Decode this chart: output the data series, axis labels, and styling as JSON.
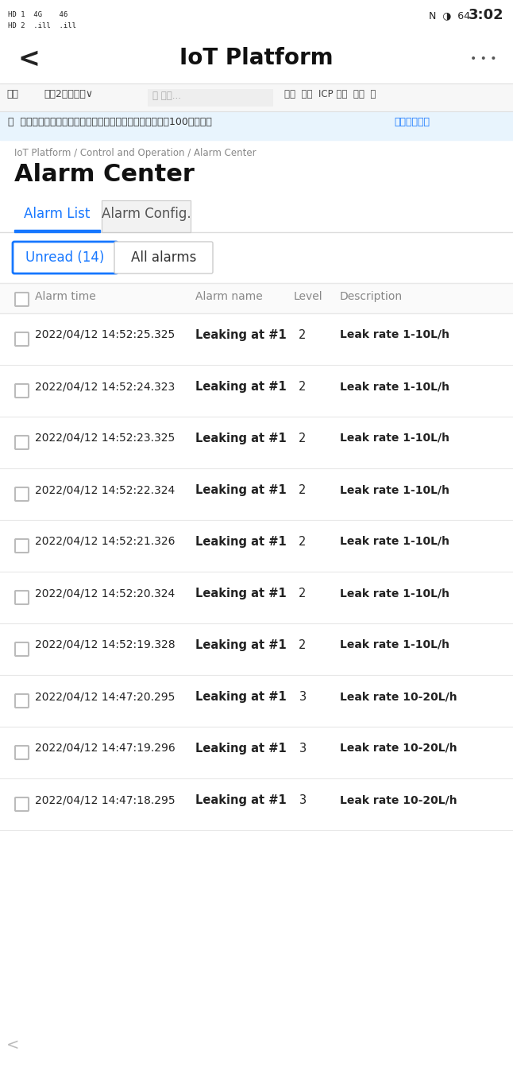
{
  "bg_color": "#ffffff",
  "status_bar_bg": "#ffffff",
  "status_bar_text_color": "#222222",
  "nav_title": "IoT Platform",
  "nav_bg": "#ffffff",
  "toolbar_bg": "#f7f7f7",
  "toolbar_border": "#e0e0e0",
  "banner_bg": "#e8f4fd",
  "banner_text": "ⓘ  填写物联网平台满意度问卷，说出您的心声，有机会收获100元代金券  ",
  "banner_link": "（点击进入）",
  "banner_text_color": "#333333",
  "blue_color": "#1677ff",
  "breadcrumb": "IoT Platform / Control and Operation / Alarm Center",
  "page_title": "Alarm Center",
  "tabs": [
    "Alarm List",
    "Alarm Config."
  ],
  "filter_buttons": [
    "Unread (14)",
    "All alarms"
  ],
  "table_headers": [
    "Alarm time",
    "Alarm name",
    "Level",
    "Description"
  ],
  "table_rows": [
    [
      "2022/04/12 14:52:25.325",
      "Leaking at #1",
      "2",
      "Leak rate 1-10L/h"
    ],
    [
      "2022/04/12 14:52:24.323",
      "Leaking at #1",
      "2",
      "Leak rate 1-10L/h"
    ],
    [
      "2022/04/12 14:52:23.325",
      "Leaking at #1",
      "2",
      "Leak rate 1-10L/h"
    ],
    [
      "2022/04/12 14:52:22.324",
      "Leaking at #1",
      "2",
      "Leak rate 1-10L/h"
    ],
    [
      "2022/04/12 14:52:21.326",
      "Leaking at #1",
      "2",
      "Leak rate 1-10L/h"
    ],
    [
      "2022/04/12 14:52:20.324",
      "Leaking at #1",
      "2",
      "Leak rate 1-10L/h"
    ],
    [
      "2022/04/12 14:52:19.328",
      "Leaking at #1",
      "2",
      "Leak rate 1-10L/h"
    ],
    [
      "2022/04/12 14:47:20.295",
      "Leaking at #1",
      "3",
      "Leak rate 10-20L/h"
    ],
    [
      "2022/04/12 14:47:19.296",
      "Leaking at #1",
      "3",
      "Leak rate 10-20L/h"
    ],
    [
      "2022/04/12 14:47:18.295",
      "Leaking at #1",
      "3",
      "Leak rate 10-20L/h"
    ]
  ],
  "divider_color": "#e8e8e8",
  "header_text_color": "#888888",
  "row_text_color": "#222222",
  "checkbox_color": "#cccccc"
}
